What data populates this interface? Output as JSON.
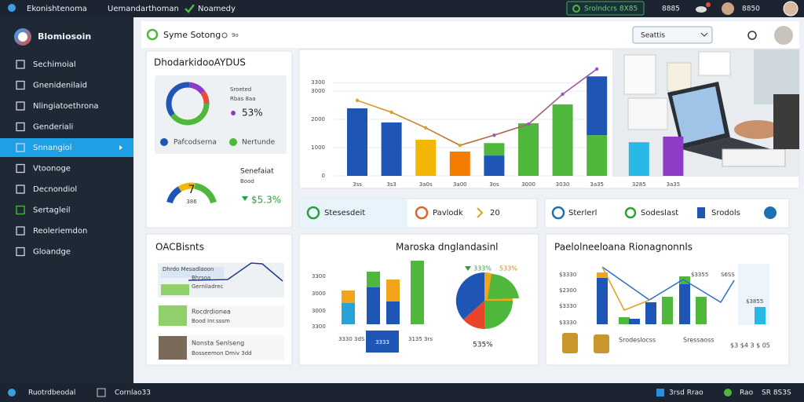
{
  "topbar": {
    "items": [
      "Ekonishtenoma",
      "Uemandarthoman",
      "Noamedy"
    ],
    "status": "Srolndcrs 8X85",
    "count": "8885",
    "user": "8850"
  },
  "sidebar": {
    "brand": "Blomiosoin",
    "items": [
      "Sechimoial",
      "Gnenidenilaid",
      "Nlingiatoethrona",
      "Genderiali",
      "Snnangiol",
      "Vtoonoge",
      "Decnondiol",
      "Sertagleil",
      "Reoleriemdon",
      "Gloandge"
    ],
    "active": 4
  },
  "header": {
    "title": "Syme Sotong",
    "badge": "9o",
    "search": "Seattis"
  },
  "overview": {
    "title": "DhodarkidooAYDUS",
    "donut_label": "Sroeted",
    "donut_sub": "Rbas 8aa",
    "donut_value": "53%",
    "legend": [
      "Pafcodserna",
      "Nertunde"
    ],
    "gauge_value": "7",
    "gauge_sub": "386",
    "gauge_label": "Senefaiat",
    "gauge_sub2": "Bood",
    "gauge_change": "$5.3%"
  },
  "main_chart": {
    "ylim": [
      0,
      4000
    ],
    "yticks": [
      0,
      1000,
      2000,
      3000,
      3300
    ],
    "categories": [
      "3ss",
      "3s3",
      "3a0s",
      "3a00",
      "3os",
      "3000",
      "3030",
      "3a35",
      "3285",
      "3a35"
    ],
    "bars": [
      [
        {
          "value": 2390,
          "color": "#1f56b5"
        }
      ],
      [
        {
          "value": 1890,
          "color": "#1f56b5"
        }
      ],
      [
        {
          "value": 1280,
          "color": "#f2b705"
        }
      ],
      [
        {
          "value": 860,
          "color": "#f57c00"
        }
      ],
      [
        {
          "value": 720,
          "color": "#1f56b5"
        },
        {
          "value": 440,
          "color": "#4fb83c"
        }
      ],
      [
        {
          "value": 1860,
          "color": "#4fb83c"
        }
      ],
      [
        {
          "value": 2530,
          "color": "#4fb83c"
        }
      ],
      [
        {
          "value": 1440,
          "color": "#4fb83c"
        },
        {
          "value": 2080,
          "color": "#1f56b5"
        }
      ],
      [
        {
          "value": 1190,
          "color": "#29b8e6"
        }
      ],
      [
        {
          "value": 1390,
          "color": "#8e3cc8"
        }
      ]
    ],
    "line": [
      2670,
      2250,
      1700,
      1080,
      1440,
      1830,
      2890,
      3780,
      null,
      null
    ],
    "line_color": "#9b59b6"
  },
  "metrics": [
    "Stesesdeit",
    "Pavlodk",
    "20",
    "Sterlerl",
    "Sodeslast",
    "Srodols"
  ],
  "accounts": {
    "title": "OACBisnts",
    "rows": [
      [
        "Dhrdo Mesadlaoon",
        "Bhrsoa",
        "Gerniladrec"
      ],
      [
        "Rocdrdionea",
        "Bood Inr.sssm"
      ],
      [
        "Nonsta Senlseng",
        "Bosseemon Dmiv 3dd"
      ]
    ]
  },
  "market": {
    "title": "Maroska dnglandasinl",
    "ylabels": [
      "3300",
      "3000",
      "3000",
      "3300"
    ],
    "xlabels": [
      "3330 3dS",
      "3333",
      "3135 3rs"
    ],
    "pie": [
      "333%",
      "533%",
      "535%"
    ]
  },
  "performance": {
    "title": "Paelolneeloana Rionagnonnls",
    "ylabels": [
      "$3330",
      "$2300",
      "$3330",
      "$3330"
    ],
    "right": [
      "$3355",
      "S6SS",
      "$3855"
    ],
    "footer": [
      "Srodeslocss",
      "Sressaoss",
      "$3 $4 3 $ 05"
    ]
  },
  "footer": {
    "left": [
      "Ruotrdbeodal",
      "Cornlao33"
    ],
    "right": [
      "3rsd Rrao",
      "Rao",
      "SR 8S3S"
    ]
  }
}
